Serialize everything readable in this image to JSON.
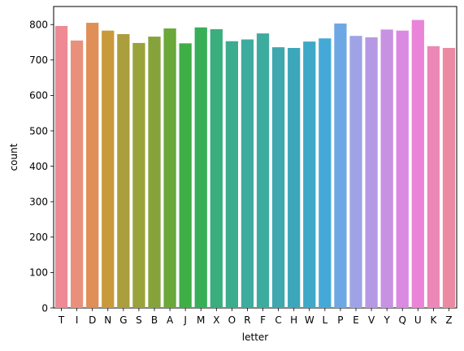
{
  "chart_data": {
    "type": "bar",
    "categories": [
      "T",
      "I",
      "D",
      "N",
      "G",
      "S",
      "B",
      "A",
      "J",
      "M",
      "X",
      "O",
      "R",
      "F",
      "C",
      "H",
      "W",
      "L",
      "P",
      "E",
      "V",
      "Y",
      "Q",
      "U",
      "K",
      "Z"
    ],
    "values": [
      796,
      755,
      805,
      783,
      773,
      748,
      766,
      789,
      747,
      792,
      787,
      753,
      758,
      775,
      736,
      734,
      752,
      761,
      803,
      768,
      764,
      786,
      783,
      813,
      739,
      734
    ],
    "colors": [
      "#ee8a94",
      "#e9907c",
      "#e08f56",
      "#c99a3c",
      "#ab9e3c",
      "#9aa23a",
      "#86a33b",
      "#6aa83a",
      "#3fae46",
      "#38af57",
      "#3aae7c",
      "#3cac8f",
      "#3dac9e",
      "#3eab9f",
      "#3ea8ae",
      "#3ca7ba",
      "#3ea8c6",
      "#45a9d8",
      "#6ea8e4",
      "#9fa3e6",
      "#b699e4",
      "#c892e3",
      "#d98ae1",
      "#ea84d8",
      "#ec88b8",
      "#ec8aa4"
    ],
    "xlabel": "letter",
    "ylabel": "count",
    "ylim": [
      0,
      851
    ],
    "yticks": [
      0,
      100,
      200,
      300,
      400,
      500,
      600,
      700,
      800
    ],
    "grid": false,
    "legend": "none"
  }
}
